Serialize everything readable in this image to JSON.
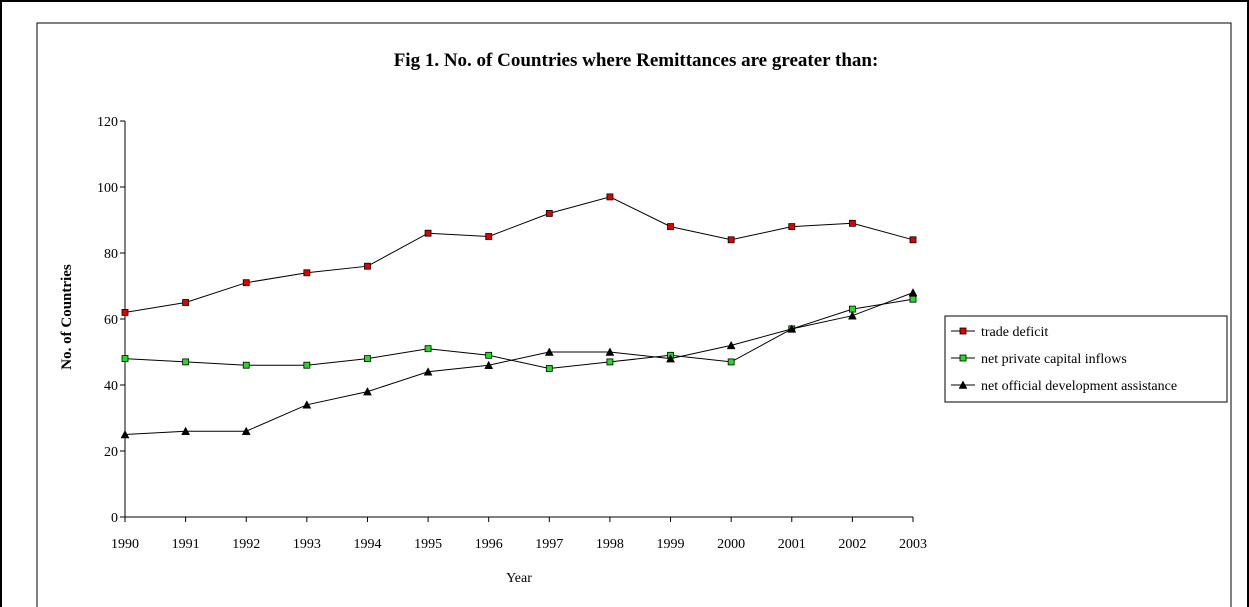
{
  "chart_data": {
    "type": "line",
    "title": "Fig 1. No. of Countries where Remittances are greater than:",
    "xlabel": "Year",
    "ylabel": "No. of Countries",
    "x": [
      1990,
      1991,
      1992,
      1993,
      1994,
      1995,
      1996,
      1997,
      1998,
      1999,
      2000,
      2001,
      2002,
      2003
    ],
    "x_tick_labels": [
      "1990",
      "1991",
      "1992",
      "1993",
      "1994",
      "1995",
      "1996",
      "1997",
      "1998",
      "1999",
      "2000",
      "2001",
      "2002",
      "2003"
    ],
    "ylim": [
      0,
      120
    ],
    "y_ticks": [
      0,
      20,
      40,
      60,
      80,
      100,
      120
    ],
    "y_tick_labels": [
      "0",
      "20",
      "40",
      "60",
      "80",
      "100",
      "120"
    ],
    "grid": false,
    "legend_position": "right",
    "series": [
      {
        "name": "trade deficit",
        "marker": "square",
        "color": "#e00000",
        "values": [
          62,
          65,
          71,
          74,
          76,
          86,
          85,
          92,
          97,
          88,
          84,
          88,
          89,
          84
        ]
      },
      {
        "name": "net private capital inflows",
        "marker": "square",
        "color": "#22dd22",
        "values": [
          48,
          47,
          46,
          46,
          48,
          51,
          49,
          45,
          47,
          49,
          47,
          57,
          63,
          66
        ]
      },
      {
        "name": "net official development assistance",
        "marker": "triangle",
        "color": "#000000",
        "values": [
          25,
          26,
          26,
          34,
          38,
          44,
          46,
          50,
          50,
          48,
          52,
          57,
          61,
          68
        ]
      }
    ]
  }
}
